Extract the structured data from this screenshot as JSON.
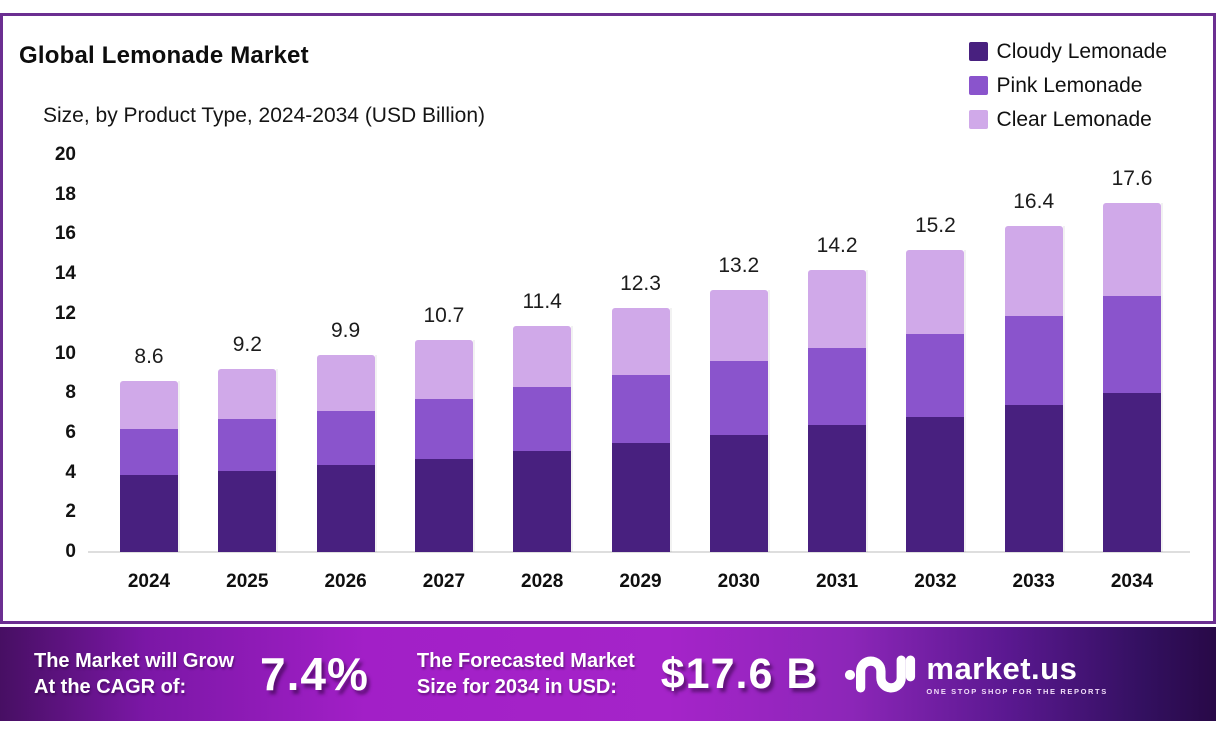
{
  "page": {
    "title": "Global Lemonade Market",
    "subtitle": "Size, by Product Type, 2024-2034 (USD Billion)"
  },
  "legend": [
    {
      "label": "Cloudy Lemonade",
      "color": "#48207f"
    },
    {
      "label": "Pink Lemonade",
      "color": "#8a54cc"
    },
    {
      "label": "Clear Lemonade",
      "color": "#d0a9e9"
    }
  ],
  "chart_data": {
    "type": "bar",
    "stacked": true,
    "title": "Global Lemonade Market",
    "subtitle": "Size, by Product Type, 2024-2034 (USD Billion)",
    "xlabel": "",
    "ylabel": "",
    "ylim": [
      0,
      20
    ],
    "grid": false,
    "legend_position": "top-right",
    "categories": [
      "2024",
      "2025",
      "2026",
      "2027",
      "2028",
      "2029",
      "2030",
      "2031",
      "2032",
      "2033",
      "2034"
    ],
    "series": [
      {
        "name": "Cloudy Lemonade",
        "color": "#48207f",
        "values": [
          3.9,
          4.1,
          4.4,
          4.7,
          5.1,
          5.5,
          5.9,
          6.4,
          6.8,
          7.4,
          8.0
        ]
      },
      {
        "name": "Pink Lemonade",
        "color": "#8a54cc",
        "values": [
          2.3,
          2.6,
          2.7,
          3.0,
          3.2,
          3.4,
          3.7,
          3.9,
          4.2,
          4.5,
          4.9
        ]
      },
      {
        "name": "Clear Lemonade",
        "color": "#d0a9e9",
        "values": [
          2.4,
          2.5,
          2.8,
          3.0,
          3.1,
          3.4,
          3.6,
          3.9,
          4.2,
          4.5,
          4.7
        ]
      }
    ],
    "totals": [
      8.6,
      9.2,
      9.9,
      10.7,
      11.4,
      12.3,
      13.2,
      14.2,
      15.2,
      16.4,
      17.6
    ],
    "y_ticks": [
      0,
      2,
      4,
      6,
      8,
      10,
      12,
      14,
      16,
      18,
      20
    ]
  },
  "banner": {
    "cagr_label_line1": "The Market will Grow",
    "cagr_label_line2": "At the CAGR of:",
    "cagr_value": "7.4%",
    "forecast_label_line1": "The Forecasted Market",
    "forecast_label_line2": "Size for 2034 in USD:",
    "forecast_value": "$17.6 B",
    "brand": "market.us",
    "brand_tagline": "ONE STOP SHOP FOR THE REPORTS"
  }
}
